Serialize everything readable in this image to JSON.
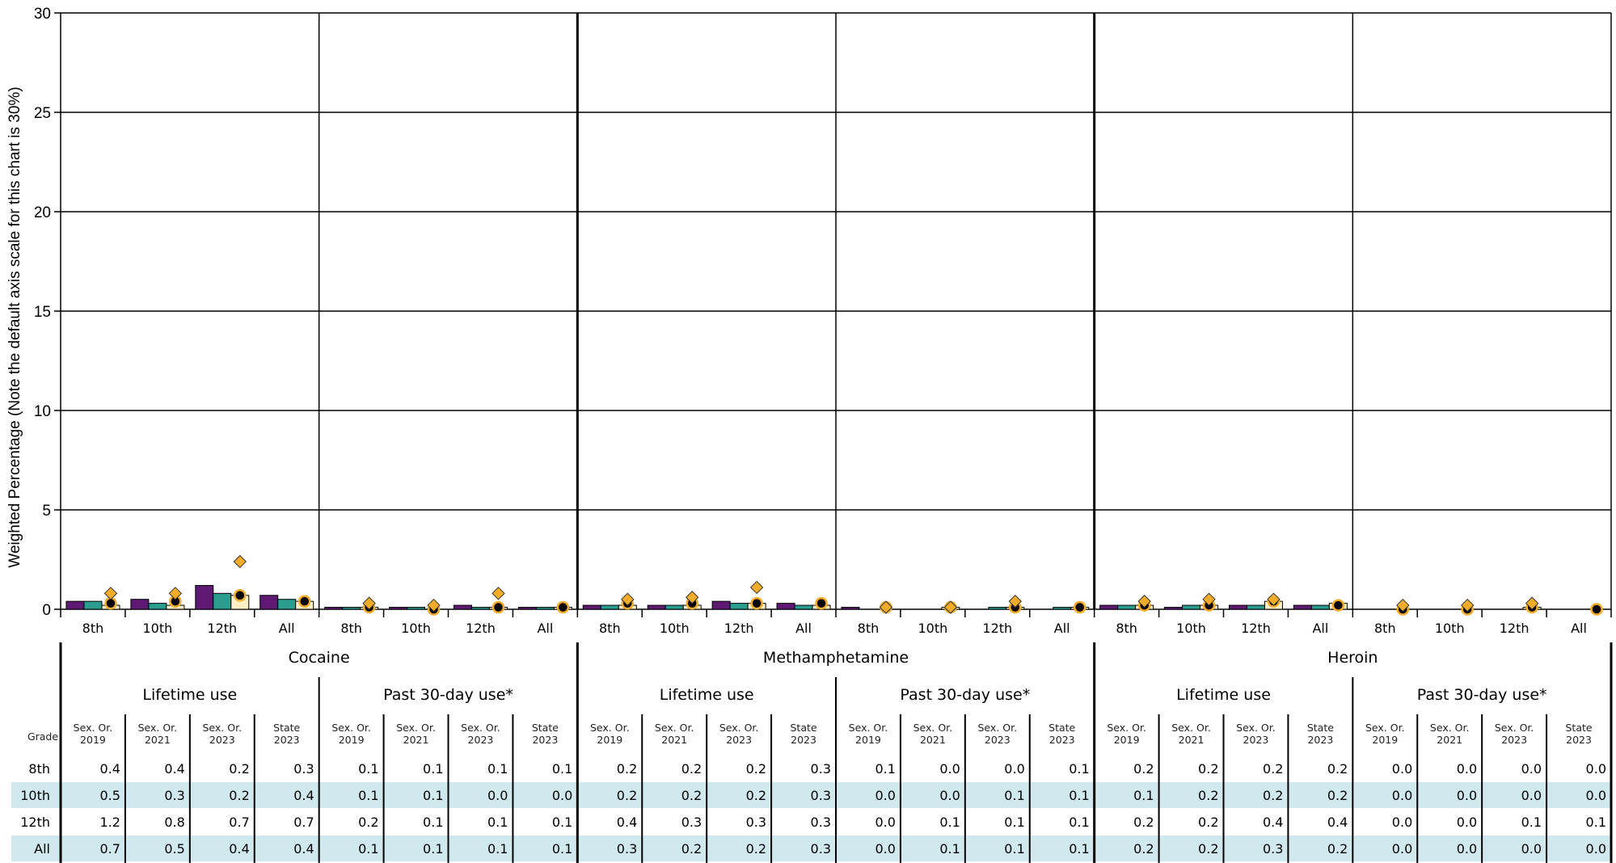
{
  "chart_data": {
    "type": "bar",
    "ylabel": "Weighted Percentage (Note the default axis scale for this chart is 30%)",
    "ylim": [
      0,
      30
    ],
    "yticks": [
      0,
      5,
      10,
      15,
      20,
      25,
      30
    ],
    "grid": true,
    "grades": [
      "8th",
      "10th",
      "12th",
      "All"
    ],
    "colors": {
      "sex_or_2019": "#5e1a73",
      "sex_or_2021": "#2a9d8f",
      "sex_or_2023": "#fdefc6",
      "state_marker": "#f3ac2a",
      "circle_marker": "#000000"
    },
    "series_labels": {
      "sex_or_2019": "Sex. Or. 2019",
      "sex_or_2021": "Sex. Or. 2021",
      "sex_or_2023": "Sex. Or. 2023",
      "state_2023": "State 2023"
    },
    "groups": [
      {
        "drug": "Cocaine",
        "measures": [
          {
            "label": "Lifetime use",
            "rows": [
              {
                "grade": "8th",
                "v2019": 0.4,
                "v2021": 0.4,
                "v2023": 0.2,
                "state": 0.3
              },
              {
                "grade": "10th",
                "v2019": 0.5,
                "v2021": 0.3,
                "v2023": 0.2,
                "state": 0.4
              },
              {
                "grade": "12th",
                "v2019": 1.2,
                "v2021": 0.8,
                "v2023": 0.7,
                "state": 0.7
              },
              {
                "grade": "All",
                "v2019": 0.7,
                "v2021": 0.5,
                "v2023": 0.4,
                "state": 0.4
              }
            ],
            "diamonds": [
              0.8,
              0.8,
              2.4,
              null
            ]
          },
          {
            "label": "Past 30-day use*",
            "rows": [
              {
                "grade": "8th",
                "v2019": 0.1,
                "v2021": 0.1,
                "v2023": 0.1,
                "state": 0.1
              },
              {
                "grade": "10th",
                "v2019": 0.1,
                "v2021": 0.1,
                "v2023": 0.0,
                "state": 0.0
              },
              {
                "grade": "12th",
                "v2019": 0.2,
                "v2021": 0.1,
                "v2023": 0.1,
                "state": 0.1
              },
              {
                "grade": "All",
                "v2019": 0.1,
                "v2021": 0.1,
                "v2023": 0.1,
                "state": 0.1
              }
            ],
            "diamonds": [
              0.3,
              0.2,
              0.8,
              null
            ]
          }
        ]
      },
      {
        "drug": "Methamphetamine",
        "measures": [
          {
            "label": "Lifetime use",
            "rows": [
              {
                "grade": "8th",
                "v2019": 0.2,
                "v2021": 0.2,
                "v2023": 0.2,
                "state": 0.3
              },
              {
                "grade": "10th",
                "v2019": 0.2,
                "v2021": 0.2,
                "v2023": 0.2,
                "state": 0.3
              },
              {
                "grade": "12th",
                "v2019": 0.4,
                "v2021": 0.3,
                "v2023": 0.3,
                "state": 0.3
              },
              {
                "grade": "All",
                "v2019": 0.3,
                "v2021": 0.2,
                "v2023": 0.2,
                "state": 0.3
              }
            ],
            "diamonds": [
              0.5,
              0.6,
              1.1,
              null
            ]
          },
          {
            "label": "Past 30-day use*",
            "rows": [
              {
                "grade": "8th",
                "v2019": 0.1,
                "v2021": 0.0,
                "v2023": 0.0,
                "state": 0.1
              },
              {
                "grade": "10th",
                "v2019": 0.0,
                "v2021": 0.0,
                "v2023": 0.1,
                "state": 0.1
              },
              {
                "grade": "12th",
                "v2019": 0.0,
                "v2021": 0.1,
                "v2023": 0.1,
                "state": 0.1
              },
              {
                "grade": "All",
                "v2019": 0.0,
                "v2021": 0.1,
                "v2023": 0.1,
                "state": 0.1
              }
            ],
            "diamonds": [
              0.1,
              0.1,
              0.4,
              null
            ]
          }
        ]
      },
      {
        "drug": "Heroin",
        "measures": [
          {
            "label": "Lifetime use",
            "rows": [
              {
                "grade": "8th",
                "v2019": 0.2,
                "v2021": 0.2,
                "v2023": 0.2,
                "state": 0.2
              },
              {
                "grade": "10th",
                "v2019": 0.1,
                "v2021": 0.2,
                "v2023": 0.2,
                "state": 0.2
              },
              {
                "grade": "12th",
                "v2019": 0.2,
                "v2021": 0.2,
                "v2023": 0.4,
                "state": 0.4
              },
              {
                "grade": "All",
                "v2019": 0.2,
                "v2021": 0.2,
                "v2023": 0.3,
                "state": 0.2
              }
            ],
            "diamonds": [
              0.4,
              0.5,
              0.5,
              null
            ]
          },
          {
            "label": "Past 30-day use*",
            "rows": [
              {
                "grade": "8th",
                "v2019": 0.0,
                "v2021": 0.0,
                "v2023": 0.0,
                "state": 0.0
              },
              {
                "grade": "10th",
                "v2019": 0.0,
                "v2021": 0.0,
                "v2023": 0.0,
                "state": 0.0
              },
              {
                "grade": "12th",
                "v2019": 0.0,
                "v2021": 0.0,
                "v2023": 0.1,
                "state": 0.1
              },
              {
                "grade": "All",
                "v2019": 0.0,
                "v2021": 0.0,
                "v2023": 0.0,
                "state": 0.0
              }
            ],
            "diamonds": [
              0.2,
              0.2,
              0.3,
              null
            ]
          }
        ]
      }
    ],
    "table": {
      "grade_header": "Grade"
    }
  }
}
